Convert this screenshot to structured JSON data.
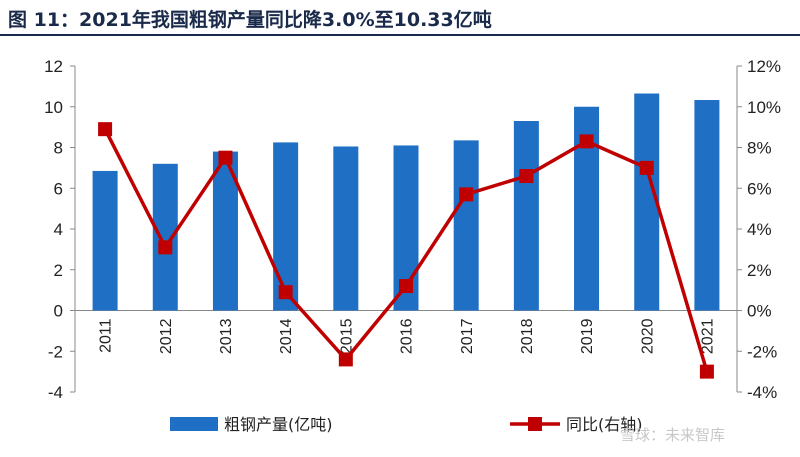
{
  "title": "图 11：2021年我国粗钢产量同比降3.0%至10.33亿吨",
  "watermark": "雪球：未来智库",
  "chart_data": {
    "type": "bar+line",
    "categories": [
      "2011",
      "2012",
      "2013",
      "2014",
      "2015",
      "2016",
      "2017",
      "2018",
      "2019",
      "2020",
      "2021"
    ],
    "series": [
      {
        "name": "粗钢产量(亿吨)",
        "type": "bar",
        "axis": "left",
        "color": "#1f6fc5",
        "values": [
          6.85,
          7.2,
          7.8,
          8.25,
          8.05,
          8.1,
          8.35,
          9.3,
          10.0,
          10.65,
          10.33
        ]
      },
      {
        "name": "同比(右轴)",
        "type": "line",
        "axis": "right",
        "color": "#c00000",
        "values": [
          8.9,
          3.1,
          7.5,
          0.9,
          -2.4,
          1.2,
          5.7,
          6.6,
          8.3,
          7.0,
          -3.0
        ]
      }
    ],
    "left_axis": {
      "min": -4,
      "max": 12,
      "step": 2,
      "ticks": [
        "-4",
        "-2",
        "0",
        "2",
        "4",
        "6",
        "8",
        "10",
        "12"
      ]
    },
    "right_axis": {
      "min": -4,
      "max": 12,
      "step": 2,
      "ticks": [
        "-4%",
        "-2%",
        "0%",
        "2%",
        "4%",
        "6%",
        "8%",
        "10%",
        "12%"
      ]
    },
    "grid": false,
    "legend_position": "bottom"
  }
}
